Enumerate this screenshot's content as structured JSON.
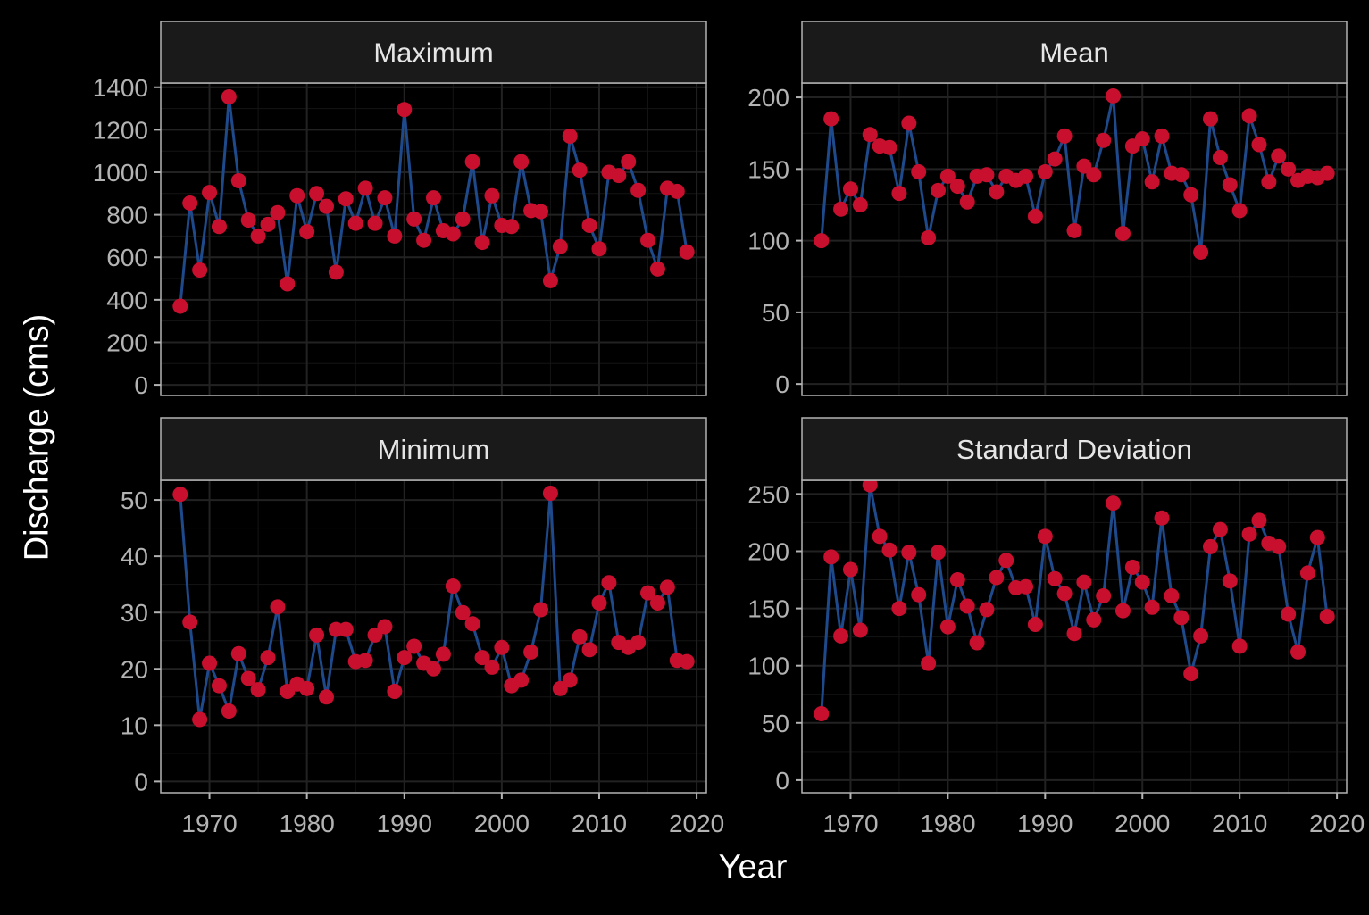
{
  "figure": {
    "xlabel": "Year",
    "ylabel": "Discharge (cms)",
    "background": "#000000",
    "panel_background": "#000000",
    "grid_color": "#222222",
    "strip_background": "#1a1a1a",
    "line_color": "#1e4a8c",
    "point_color": "#c8102e",
    "text_color": "#b3b3b3"
  },
  "chart_data": [
    {
      "type": "line",
      "title": "Maximum",
      "xlabel": "Year",
      "ylabel": "Discharge (cms)",
      "xlim": [
        1965,
        2021
      ],
      "ylim": [
        -50,
        1420
      ],
      "xticks": [
        1970,
        1980,
        1990,
        2000,
        2010,
        2020
      ],
      "yticks": [
        0,
        200,
        400,
        600,
        800,
        1000,
        1200,
        1400
      ],
      "grid": true,
      "x": [
        1967,
        1968,
        1969,
        1970,
        1971,
        1972,
        1973,
        1974,
        1975,
        1976,
        1977,
        1978,
        1979,
        1980,
        1981,
        1982,
        1983,
        1984,
        1985,
        1986,
        1987,
        1988,
        1989,
        1990,
        1991,
        1992,
        1993,
        1994,
        1995,
        1996,
        1997,
        1998,
        1999,
        2000,
        2001,
        2002,
        2003,
        2004,
        2005,
        2006,
        2007,
        2008,
        2009,
        2010,
        2011,
        2012,
        2013,
        2014,
        2015,
        2016,
        2017,
        2018,
        2019
      ],
      "values": [
        370,
        855,
        540,
        905,
        745,
        1355,
        960,
        775,
        700,
        755,
        810,
        475,
        890,
        720,
        900,
        840,
        530,
        875,
        760,
        925,
        760,
        880,
        700,
        1295,
        780,
        680,
        880,
        725,
        710,
        780,
        1050,
        670,
        890,
        750,
        745,
        1050,
        820,
        815,
        490,
        650,
        1170,
        1010,
        750,
        640,
        1000,
        985,
        1050,
        915,
        680,
        545,
        925,
        910,
        625
      ]
    },
    {
      "type": "line",
      "title": "Mean",
      "xlabel": "Year",
      "ylabel": "Discharge (cms)",
      "xlim": [
        1965,
        2021
      ],
      "ylim": [
        -8,
        210
      ],
      "xticks": [
        1970,
        1980,
        1990,
        2000,
        2010,
        2020
      ],
      "yticks": [
        0,
        50,
        100,
        150,
        200
      ],
      "grid": true,
      "x": [
        1967,
        1968,
        1969,
        1970,
        1971,
        1972,
        1973,
        1974,
        1975,
        1976,
        1977,
        1978,
        1979,
        1980,
        1981,
        1982,
        1983,
        1984,
        1985,
        1986,
        1987,
        1988,
        1989,
        1990,
        1991,
        1992,
        1993,
        1994,
        1995,
        1996,
        1997,
        1998,
        1999,
        2000,
        2001,
        2002,
        2003,
        2004,
        2005,
        2006,
        2007,
        2008,
        2009,
        2010,
        2011,
        2012,
        2013,
        2014,
        2015,
        2016,
        2017,
        2018,
        2019
      ],
      "values": [
        100,
        185,
        122,
        136,
        125,
        174,
        166,
        165,
        133,
        182,
        148,
        102,
        135,
        145,
        138,
        127,
        145,
        146,
        134,
        145,
        142,
        145,
        117,
        148,
        157,
        173,
        107,
        152,
        146,
        170,
        201,
        105,
        166,
        171,
        141,
        173,
        147,
        146,
        132,
        92,
        185,
        158,
        139,
        121,
        187,
        167,
        141,
        159,
        150,
        142,
        145,
        144,
        147
      ]
    },
    {
      "type": "line",
      "title": "Minimum",
      "xlabel": "Year",
      "ylabel": "Discharge (cms)",
      "xlim": [
        1965,
        2021
      ],
      "ylim": [
        -2,
        53.5
      ],
      "xticks": [
        1970,
        1980,
        1990,
        2000,
        2010,
        2020
      ],
      "yticks": [
        0,
        10,
        20,
        30,
        40,
        50
      ],
      "grid": true,
      "x": [
        1967,
        1968,
        1969,
        1970,
        1971,
        1972,
        1973,
        1974,
        1975,
        1976,
        1977,
        1978,
        1979,
        1980,
        1981,
        1982,
        1983,
        1984,
        1985,
        1986,
        1987,
        1988,
        1989,
        1990,
        1991,
        1992,
        1993,
        1994,
        1995,
        1996,
        1997,
        1998,
        1999,
        2000,
        2001,
        2002,
        2003,
        2004,
        2005,
        2006,
        2007,
        2008,
        2009,
        2010,
        2011,
        2012,
        2013,
        2014,
        2015,
        2016,
        2017,
        2018,
        2019
      ],
      "values": [
        51,
        28.3,
        11,
        21,
        17,
        12.5,
        22.7,
        18.3,
        16.3,
        22,
        31,
        16,
        17.3,
        16.5,
        26,
        15,
        27,
        27,
        21.3,
        21.5,
        26,
        27.5,
        16,
        22,
        24,
        21,
        20,
        22.6,
        34.7,
        30,
        28,
        22,
        20.3,
        23.8,
        17,
        18,
        23,
        30.5,
        51.2,
        16.5,
        18,
        25.7,
        23.4,
        31.7,
        35.3,
        24.7,
        23.8,
        24.7,
        33.5,
        31.7,
        34.5,
        21.5,
        21.3
      ]
    },
    {
      "type": "line",
      "title": "Standard Deviation",
      "xlabel": "Year",
      "ylabel": "Discharge (cms)",
      "xlim": [
        1965,
        2021
      ],
      "ylim": [
        -11,
        262
      ],
      "xticks": [
        1970,
        1980,
        1990,
        2000,
        2010,
        2020
      ],
      "yticks": [
        0,
        50,
        100,
        150,
        200,
        250
      ],
      "grid": true,
      "x": [
        1967,
        1968,
        1969,
        1970,
        1971,
        1972,
        1973,
        1974,
        1975,
        1976,
        1977,
        1978,
        1979,
        1980,
        1981,
        1982,
        1983,
        1984,
        1985,
        1986,
        1987,
        1988,
        1989,
        1990,
        1991,
        1992,
        1993,
        1994,
        1995,
        1996,
        1997,
        1998,
        1999,
        2000,
        2001,
        2002,
        2003,
        2004,
        2005,
        2006,
        2007,
        2008,
        2009,
        2010,
        2011,
        2012,
        2013,
        2014,
        2015,
        2016,
        2017,
        2018,
        2019
      ],
      "values": [
        58,
        195,
        126,
        184,
        131,
        258,
        213,
        201,
        150,
        199,
        162,
        102,
        199,
        134,
        175,
        152,
        120,
        149,
        177,
        192,
        168,
        169,
        136,
        213,
        176,
        163,
        128,
        173,
        140,
        161,
        242,
        148,
        186,
        173,
        151,
        229,
        161,
        142,
        93,
        126,
        204,
        219,
        174,
        117,
        215,
        227,
        207,
        204,
        145,
        112,
        181,
        212,
        143
      ]
    }
  ]
}
